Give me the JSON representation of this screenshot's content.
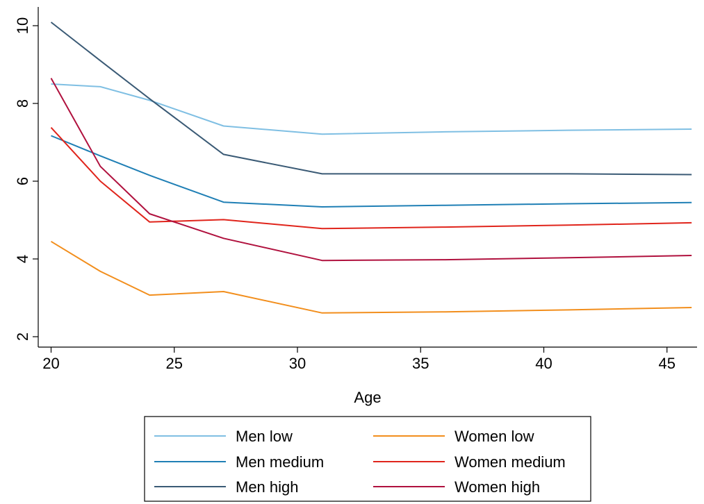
{
  "chart_data": {
    "type": "line",
    "title": "",
    "xlabel": "Age",
    "ylabel": "",
    "xlim": [
      20,
      46
    ],
    "ylim": [
      2,
      10.4
    ],
    "x_ticks": [
      20,
      25,
      30,
      35,
      40,
      45
    ],
    "y_ticks": [
      2,
      4,
      6,
      8,
      10
    ],
    "x_tick_labels": [
      "20",
      "25",
      "30",
      "35",
      "40",
      "45"
    ],
    "y_tick_labels": [
      "2",
      "4",
      "6",
      "8",
      "10"
    ],
    "grid": false,
    "legend_position": "bottom",
    "x": [
      20,
      22,
      24,
      27,
      31,
      36,
      41,
      46
    ],
    "series": [
      {
        "name": "Men low",
        "color": "#7fbfe3",
        "values": [
          8.5,
          8.43,
          8.08,
          7.42,
          7.21,
          7.27,
          7.31,
          7.34
        ]
      },
      {
        "name": "Men medium",
        "color": "#1f7fb5",
        "values": [
          7.17,
          6.65,
          6.15,
          5.46,
          5.34,
          5.38,
          5.42,
          5.45
        ]
      },
      {
        "name": "Men high",
        "color": "#3a5a75",
        "values": [
          10.09,
          9.1,
          8.12,
          6.69,
          6.19,
          6.19,
          6.19,
          6.17
        ]
      },
      {
        "name": "Women low",
        "color": "#f28e1c",
        "values": [
          4.45,
          3.68,
          3.07,
          3.16,
          2.61,
          2.64,
          2.69,
          2.75
        ]
      },
      {
        "name": "Women medium",
        "color": "#e0241b",
        "values": [
          7.38,
          6.0,
          4.95,
          5.01,
          4.78,
          4.82,
          4.87,
          4.93
        ]
      },
      {
        "name": "Women high",
        "color": "#b0113e",
        "values": [
          8.65,
          6.38,
          5.16,
          4.53,
          3.96,
          3.98,
          4.03,
          4.09
        ]
      }
    ]
  }
}
